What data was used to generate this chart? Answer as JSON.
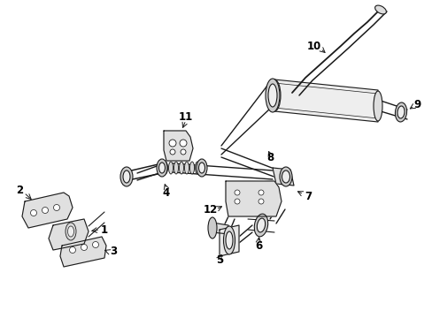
{
  "bg_color": "#ffffff",
  "line_color": "#1a1a1a",
  "figsize": [
    4.89,
    3.6
  ],
  "dpi": 100,
  "font_size": 8.5,
  "lw": 0.8
}
